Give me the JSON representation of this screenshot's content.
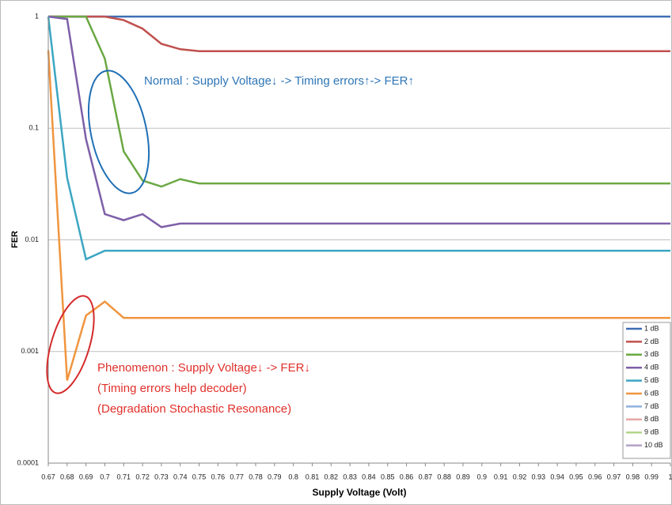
{
  "chart_data": {
    "type": "line",
    "x_label": "Supply Voltage (Volt)",
    "y_label": "FER",
    "x": [
      0.67,
      0.68,
      0.69,
      0.7,
      0.71,
      0.72,
      0.73,
      0.74,
      0.75,
      0.76,
      0.77,
      0.78,
      0.79,
      0.8,
      0.81,
      0.82,
      0.83,
      0.84,
      0.85,
      0.86,
      0.87,
      0.88,
      0.89,
      0.9,
      0.91,
      0.92,
      0.93,
      0.94,
      0.95,
      0.96,
      0.97,
      0.98,
      0.99,
      1
    ],
    "xlim": [
      0.67,
      1
    ],
    "xticks": [
      0.67,
      0.68,
      0.69,
      0.7,
      0.71,
      0.72,
      0.73,
      0.74,
      0.75,
      0.76,
      0.77,
      0.78,
      0.79,
      0.8,
      0.81,
      0.82,
      0.83,
      0.84,
      0.85,
      0.86,
      0.87,
      0.88,
      0.89,
      0.9,
      0.91,
      0.92,
      0.93,
      0.94,
      0.95,
      0.96,
      0.97,
      0.98,
      0.99,
      1
    ],
    "ylim": [
      0.0001,
      1
    ],
    "yticks": [
      0.0001,
      0.001,
      0.01,
      0.1,
      1
    ],
    "y_scale": "log",
    "grid": true,
    "legend": "lower right",
    "series": [
      {
        "name": "1 dB",
        "color": "#3d6db5",
        "values": [
          1,
          1,
          1,
          1,
          1,
          1,
          1,
          1,
          1,
          1,
          1,
          1,
          1,
          1,
          1,
          1,
          1,
          1,
          1,
          1,
          1,
          1,
          1,
          1,
          1,
          1,
          1,
          1,
          1,
          1,
          1,
          1,
          1,
          1
        ]
      },
      {
        "name": "2 dB",
        "color": "#c0504d",
        "values": [
          1,
          1,
          1,
          1,
          0.93,
          0.78,
          0.57,
          0.51,
          0.49,
          0.49,
          0.49,
          0.49,
          0.49,
          0.49,
          0.49,
          0.49,
          0.49,
          0.49,
          0.49,
          0.49,
          0.49,
          0.49,
          0.49,
          0.49,
          0.49,
          0.49,
          0.49,
          0.49,
          0.49,
          0.49,
          0.49,
          0.49,
          0.49,
          0.49
        ]
      },
      {
        "name": "3 dB",
        "color": "#6aa843",
        "values": [
          1,
          1,
          1,
          0.42,
          0.062,
          0.034,
          0.03,
          0.035,
          0.032,
          0.032,
          0.032,
          0.032,
          0.032,
          0.032,
          0.032,
          0.032,
          0.032,
          0.032,
          0.032,
          0.032,
          0.032,
          0.032,
          0.032,
          0.032,
          0.032,
          0.032,
          0.032,
          0.032,
          0.032,
          0.032,
          0.032,
          0.032,
          0.032,
          0.032
        ]
      },
      {
        "name": "4 dB",
        "color": "#7e5fa8",
        "values": [
          1,
          0.95,
          0.08,
          0.017,
          0.015,
          0.017,
          0.013,
          0.014,
          0.014,
          0.014,
          0.014,
          0.014,
          0.014,
          0.014,
          0.014,
          0.014,
          0.014,
          0.014,
          0.014,
          0.014,
          0.014,
          0.014,
          0.014,
          0.014,
          0.014,
          0.014,
          0.014,
          0.014,
          0.014,
          0.014,
          0.014,
          0.014,
          0.014,
          0.014
        ]
      },
      {
        "name": "5 dB",
        "color": "#3ca6c2",
        "values": [
          1,
          0.036,
          0.0067,
          0.008,
          0.008,
          0.008,
          0.008,
          0.008,
          0.008,
          0.008,
          0.008,
          0.008,
          0.008,
          0.008,
          0.008,
          0.008,
          0.008,
          0.008,
          0.008,
          0.008,
          0.008,
          0.008,
          0.008,
          0.008,
          0.008,
          0.008,
          0.008,
          0.008,
          0.008,
          0.008,
          0.008,
          0.008,
          0.008,
          0.008
        ]
      },
      {
        "name": "6 dB",
        "color": "#f0953f",
        "values": [
          0.5,
          0.00055,
          0.0021,
          0.0028,
          0.002,
          0.002,
          0.002,
          0.002,
          0.002,
          0.002,
          0.002,
          0.002,
          0.002,
          0.002,
          0.002,
          0.002,
          0.002,
          0.002,
          0.002,
          0.002,
          0.002,
          0.002,
          0.002,
          0.002,
          0.002,
          0.002,
          0.002,
          0.002,
          0.002,
          0.002,
          0.002,
          0.002,
          0.002,
          0.002
        ]
      },
      {
        "name": "7 dB",
        "color": "#8fb1dc",
        "values": [
          null,
          null,
          null,
          null,
          null,
          null,
          null,
          null,
          null,
          null,
          null,
          null,
          null,
          null,
          null,
          null,
          null,
          null,
          null,
          null,
          null,
          null,
          null,
          null,
          null,
          null,
          null,
          null,
          null,
          null,
          null,
          null,
          null,
          null
        ]
      },
      {
        "name": "8 dB",
        "color": "#e4a9a6",
        "values": [
          null,
          null,
          null,
          null,
          null,
          null,
          null,
          null,
          null,
          null,
          null,
          null,
          null,
          null,
          null,
          null,
          null,
          null,
          null,
          null,
          null,
          null,
          null,
          null,
          null,
          null,
          null,
          null,
          null,
          null,
          null,
          null,
          null,
          null
        ]
      },
      {
        "name": "9 dB",
        "color": "#b4d48c",
        "values": [
          null,
          null,
          null,
          null,
          null,
          null,
          null,
          null,
          null,
          null,
          null,
          null,
          null,
          null,
          null,
          null,
          null,
          null,
          null,
          null,
          null,
          null,
          null,
          null,
          null,
          null,
          null,
          null,
          null,
          null,
          null,
          null,
          null,
          null
        ]
      },
      {
        "name": "10 dB",
        "color": "#b3a2c7",
        "values": [
          null,
          null,
          null,
          null,
          null,
          null,
          null,
          null,
          null,
          null,
          null,
          null,
          null,
          null,
          null,
          null,
          null,
          null,
          null,
          null,
          null,
          null,
          null,
          null,
          null,
          null,
          null,
          null,
          null,
          null,
          null,
          null,
          null,
          null
        ]
      }
    ],
    "annotations": [
      "Normal : Supply Voltage↓ -> Timing errors↑-> FER↑",
      "Phenomenon : Supply Voltage↓ -> FER↓",
      "(Timing errors help decoder)",
      "(Degradation Stochastic Resonance)"
    ]
  }
}
